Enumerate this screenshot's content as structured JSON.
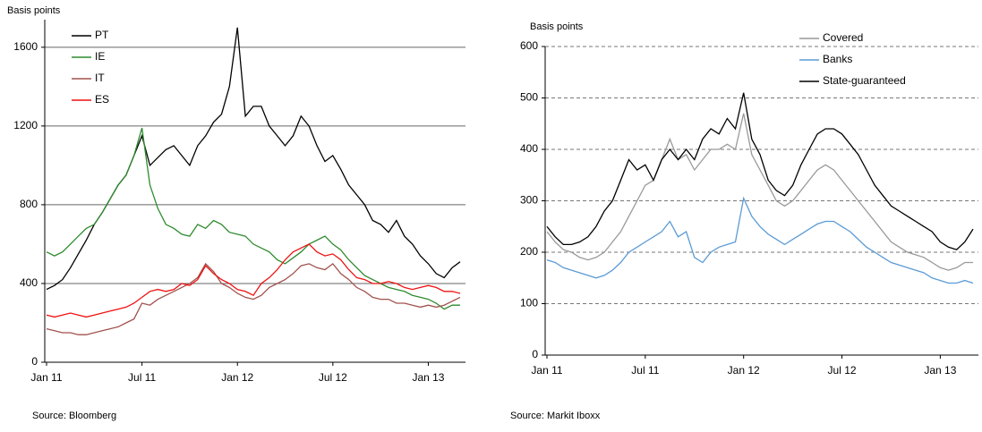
{
  "chart_data": [
    {
      "type": "line",
      "y_label": "Basis points",
      "source": "Source: Bloomberg",
      "categories": [
        "Jan 11",
        null,
        null,
        null,
        null,
        null,
        null,
        null,
        null,
        null,
        null,
        null,
        "Jul 11",
        null,
        null,
        null,
        null,
        null,
        null,
        null,
        null,
        null,
        null,
        null,
        "Jan 12",
        null,
        null,
        null,
        null,
        null,
        null,
        null,
        null,
        null,
        null,
        null,
        "Jul 12",
        null,
        null,
        null,
        null,
        null,
        null,
        null,
        null,
        null,
        null,
        null,
        "Jan 13",
        null,
        null,
        null,
        null
      ],
      "ylim": [
        0,
        1740
      ],
      "yticks": [
        0,
        400,
        800,
        1200,
        1600
      ],
      "grid": true,
      "grid_style": "solid",
      "legend": "upper left",
      "series": [
        {
          "name": "PT",
          "color": "#000000",
          "values": [
            370,
            390,
            420,
            480,
            550,
            620,
            700,
            760,
            830,
            900,
            950,
            1050,
            1150,
            1000,
            1040,
            1080,
            1100,
            1050,
            1000,
            1100,
            1150,
            1220,
            1260,
            1400,
            1700,
            1250,
            1300,
            1300,
            1200,
            1150,
            1100,
            1150,
            1250,
            1200,
            1100,
            1020,
            1050,
            980,
            900,
            850,
            800,
            720,
            700,
            660,
            720,
            640,
            600,
            540,
            500,
            450,
            430,
            480,
            510
          ]
        },
        {
          "name": "IE",
          "color": "#2e8b2e",
          "values": [
            560,
            540,
            560,
            600,
            640,
            680,
            700,
            760,
            830,
            900,
            950,
            1050,
            1190,
            900,
            780,
            700,
            680,
            650,
            640,
            700,
            680,
            720,
            700,
            660,
            650,
            640,
            600,
            580,
            560,
            520,
            500,
            530,
            560,
            600,
            620,
            640,
            600,
            570,
            520,
            480,
            440,
            420,
            400,
            380,
            370,
            360,
            340,
            330,
            320,
            300,
            270,
            290,
            290
          ]
        },
        {
          "name": "IT",
          "color": "#a0524d",
          "values": [
            170,
            160,
            150,
            150,
            140,
            140,
            150,
            160,
            170,
            180,
            200,
            220,
            300,
            290,
            320,
            340,
            360,
            380,
            400,
            430,
            500,
            460,
            400,
            380,
            350,
            330,
            320,
            340,
            380,
            400,
            420,
            450,
            490,
            500,
            480,
            470,
            500,
            450,
            420,
            380,
            360,
            330,
            320,
            320,
            300,
            300,
            290,
            280,
            290,
            280,
            290,
            310,
            330
          ]
        },
        {
          "name": "ES",
          "color": "#ee1111",
          "values": [
            240,
            230,
            240,
            250,
            240,
            230,
            240,
            250,
            260,
            270,
            280,
            300,
            330,
            360,
            370,
            360,
            370,
            400,
            390,
            420,
            490,
            450,
            420,
            400,
            370,
            360,
            340,
            400,
            430,
            470,
            520,
            560,
            580,
            600,
            560,
            540,
            550,
            520,
            470,
            430,
            420,
            400,
            400,
            410,
            400,
            380,
            370,
            380,
            390,
            380,
            360,
            360,
            350
          ]
        }
      ]
    },
    {
      "type": "line",
      "y_label": "Basis points",
      "source": "Source: Markit Iboxx",
      "categories": [
        "Jan 11",
        null,
        null,
        null,
        null,
        null,
        null,
        null,
        null,
        null,
        null,
        null,
        "Jul 11",
        null,
        null,
        null,
        null,
        null,
        null,
        null,
        null,
        null,
        null,
        null,
        "Jan 12",
        null,
        null,
        null,
        null,
        null,
        null,
        null,
        null,
        null,
        null,
        null,
        "Jul 12",
        null,
        null,
        null,
        null,
        null,
        null,
        null,
        null,
        null,
        null,
        null,
        "Jan 13",
        null,
        null,
        null,
        null
      ],
      "ylim": [
        0,
        600
      ],
      "yticks": [
        0,
        100,
        200,
        300,
        400,
        500,
        600
      ],
      "grid": true,
      "grid_style": "dashed",
      "legend": "upper right",
      "series": [
        {
          "name": "Covered",
          "color": "#999999",
          "values": [
            240,
            220,
            205,
            200,
            190,
            185,
            190,
            200,
            220,
            240,
            270,
            300,
            330,
            340,
            380,
            420,
            380,
            390,
            360,
            380,
            400,
            400,
            410,
            400,
            470,
            390,
            360,
            330,
            300,
            290,
            300,
            320,
            340,
            360,
            370,
            360,
            340,
            320,
            300,
            280,
            260,
            240,
            220,
            210,
            200,
            195,
            190,
            180,
            170,
            165,
            170,
            180,
            180
          ]
        },
        {
          "name": "Banks",
          "color": "#5b9bd5",
          "values": [
            185,
            180,
            170,
            165,
            160,
            155,
            150,
            155,
            165,
            180,
            200,
            210,
            220,
            230,
            240,
            260,
            230,
            240,
            190,
            180,
            200,
            210,
            215,
            220,
            305,
            270,
            250,
            235,
            225,
            215,
            225,
            235,
            245,
            255,
            260,
            260,
            250,
            240,
            225,
            210,
            200,
            190,
            180,
            175,
            170,
            165,
            160,
            150,
            145,
            140,
            140,
            145,
            140
          ]
        },
        {
          "name": "State-guaranteed",
          "color": "#000000",
          "values": [
            250,
            230,
            215,
            215,
            220,
            230,
            250,
            280,
            300,
            340,
            380,
            360,
            370,
            340,
            380,
            400,
            380,
            400,
            380,
            420,
            440,
            430,
            460,
            440,
            510,
            420,
            390,
            340,
            320,
            310,
            330,
            370,
            400,
            430,
            440,
            440,
            430,
            410,
            390,
            360,
            330,
            310,
            290,
            280,
            270,
            260,
            250,
            240,
            220,
            210,
            205,
            220,
            245
          ]
        }
      ]
    }
  ]
}
